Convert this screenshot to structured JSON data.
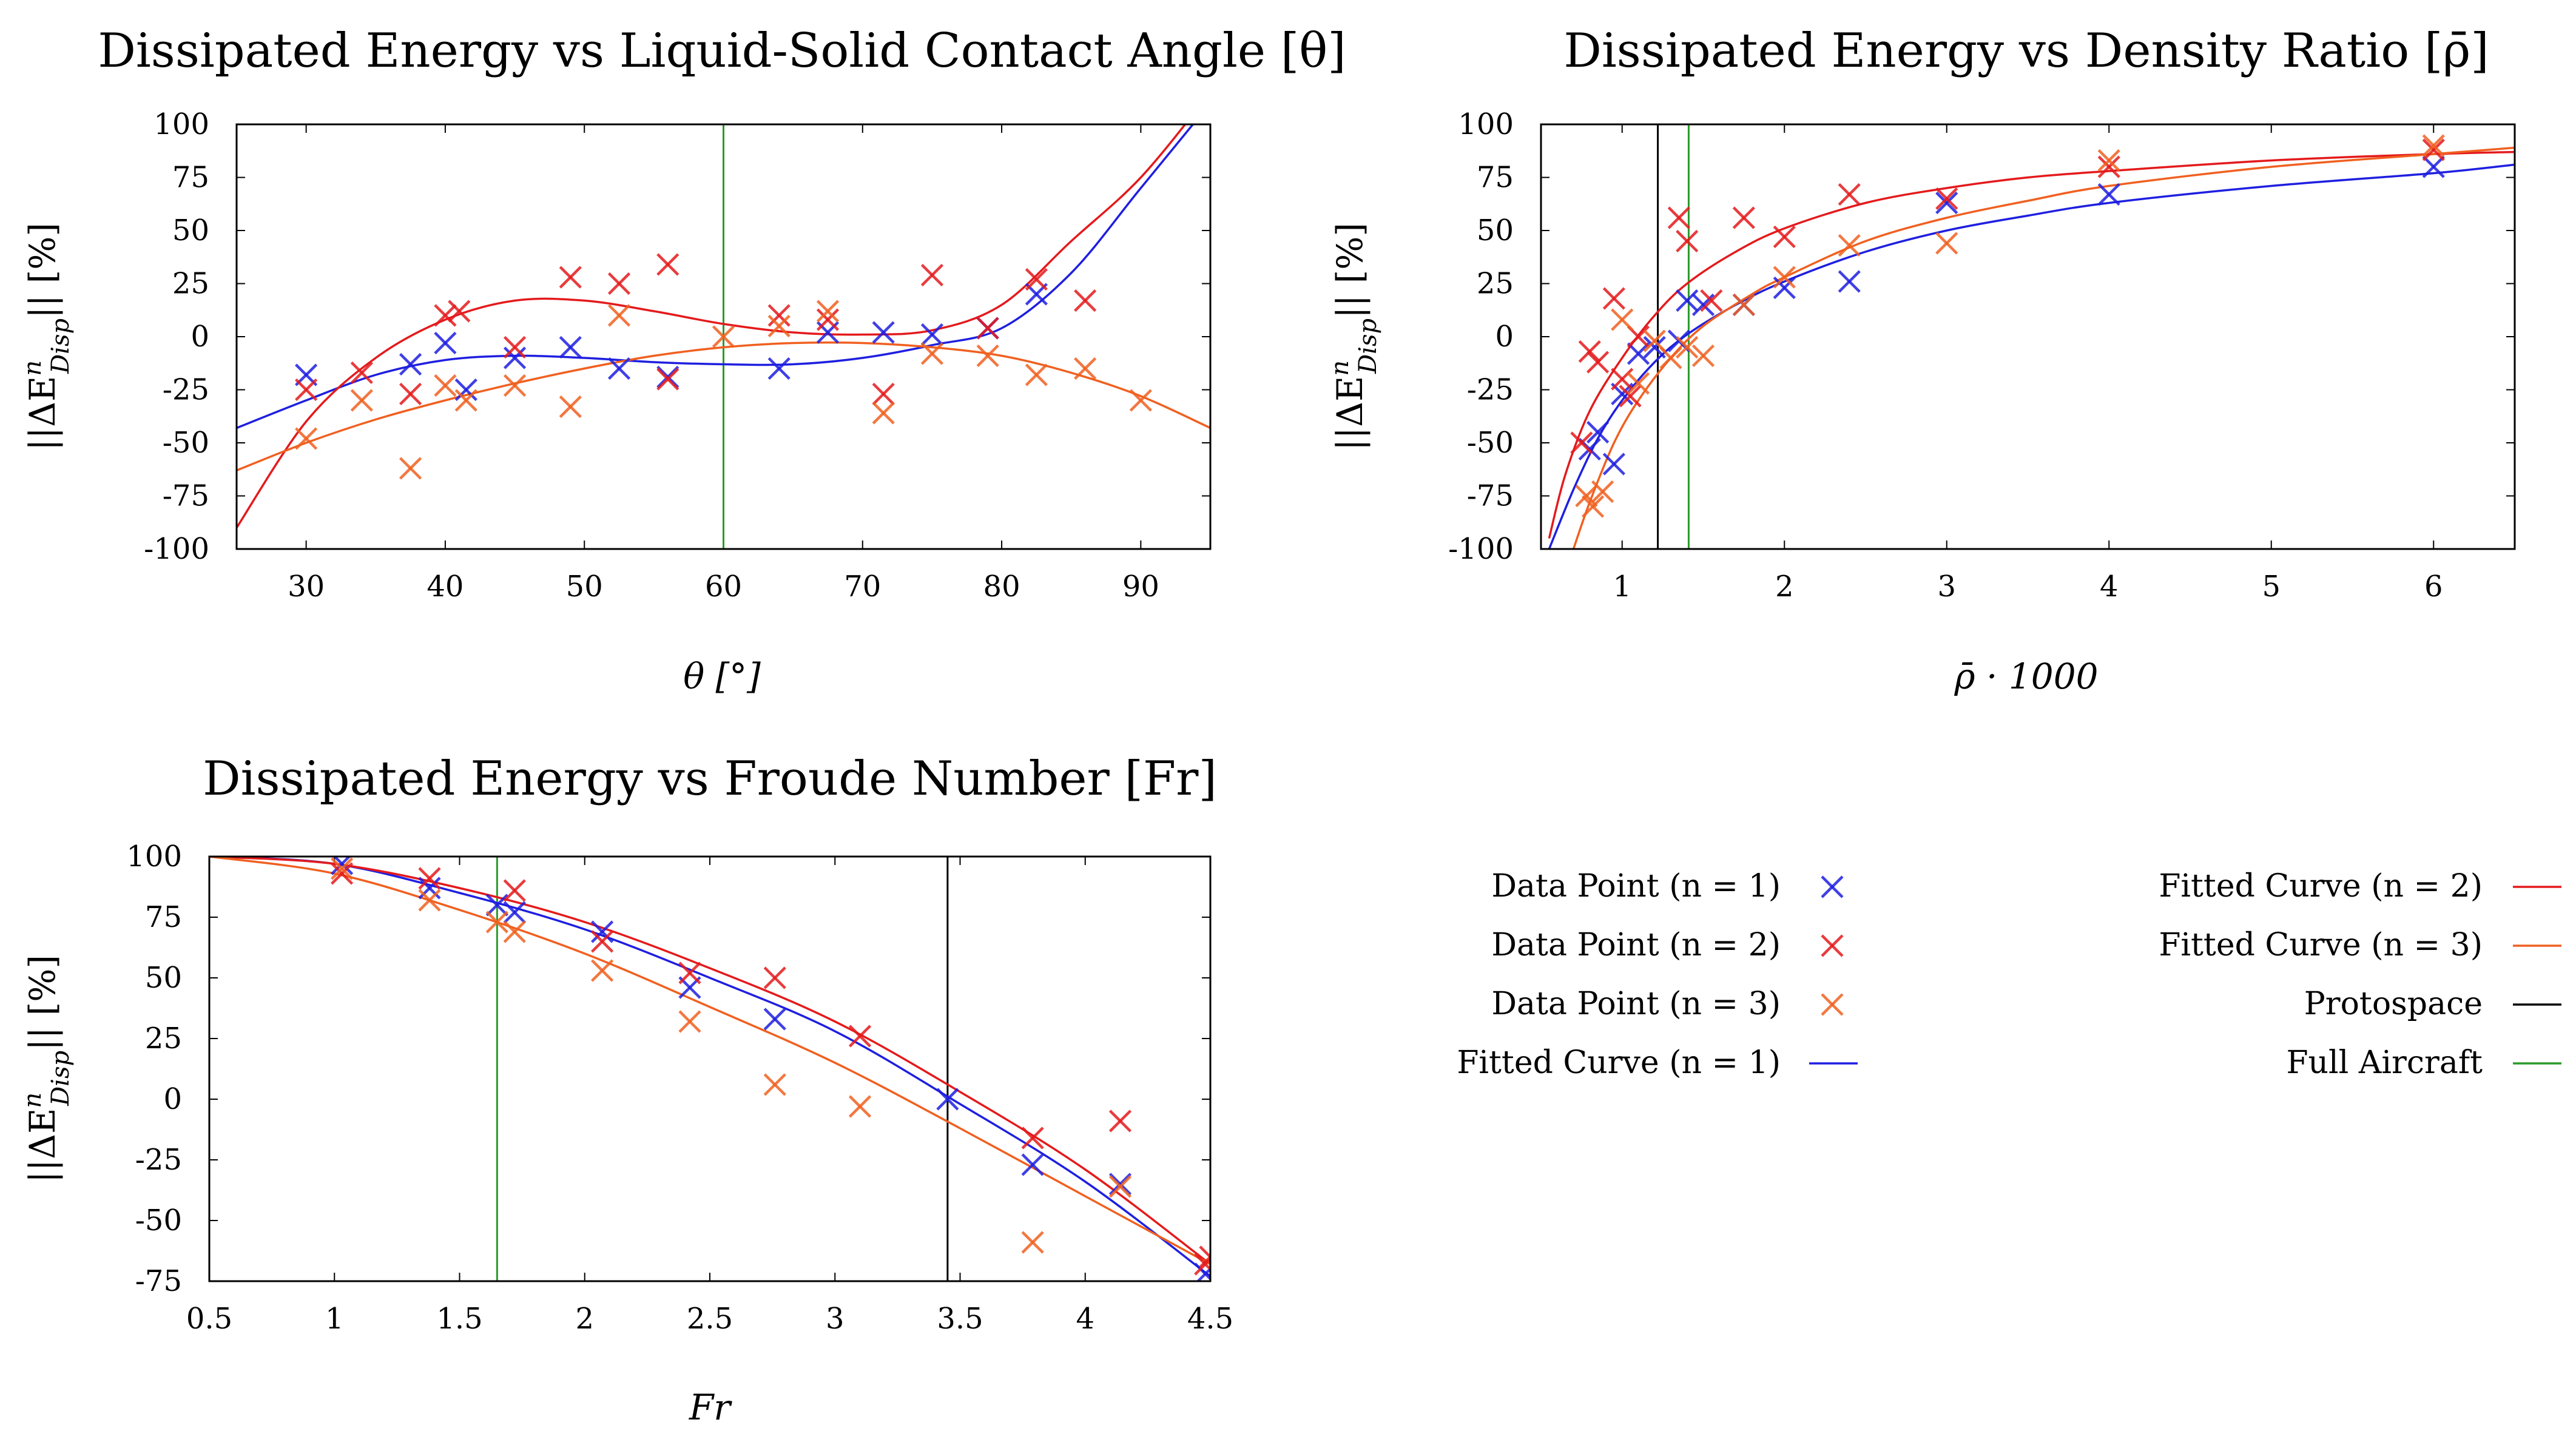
{
  "colors": {
    "n1": "#1f1fe0",
    "n2": "#e41a1c",
    "n3": "#f06020",
    "proto": "#000000",
    "full": "#2a9a2a"
  },
  "chart_data": [
    {
      "type": "scatter",
      "title": "Dissipated Energy vs Liquid-Solid Contact Angle [θ]",
      "xlabel": "θ [°]",
      "ylabel": "||ΔE^n_Disp|| [%]",
      "xlim": [
        25,
        95
      ],
      "ylim": [
        -100,
        100
      ],
      "xticks": [
        30,
        40,
        50,
        60,
        70,
        80,
        90
      ],
      "yticks": [
        -100,
        -75,
        -50,
        -25,
        0,
        25,
        50,
        75,
        100
      ],
      "vlines": [
        {
          "x": 60,
          "kind": "full"
        }
      ],
      "series": [
        {
          "name": "Data Point (n = 1)",
          "key": "n1",
          "points": [
            [
              30,
              -18
            ],
            [
              37.5,
              -13
            ],
            [
              40,
              -3
            ],
            [
              41.5,
              -25
            ],
            [
              45,
              -10
            ],
            [
              49,
              -5
            ],
            [
              52.5,
              -15
            ],
            [
              56,
              -19
            ],
            [
              64,
              -15
            ],
            [
              67.5,
              2
            ],
            [
              71.5,
              2
            ],
            [
              75,
              1
            ],
            [
              79,
              4
            ],
            [
              82.5,
              20
            ]
          ]
        },
        {
          "name": "Data Point (n = 2)",
          "key": "n2",
          "points": [
            [
              30,
              -25
            ],
            [
              34,
              -17
            ],
            [
              37.5,
              -27
            ],
            [
              40,
              10
            ],
            [
              41,
              12
            ],
            [
              45,
              -5
            ],
            [
              49,
              28
            ],
            [
              52.5,
              25
            ],
            [
              56,
              34
            ],
            [
              56,
              -20
            ],
            [
              64,
              10
            ],
            [
              67.5,
              8
            ],
            [
              71.5,
              -27
            ],
            [
              75,
              29
            ],
            [
              79,
              4
            ],
            [
              82.5,
              27
            ],
            [
              86,
              17
            ]
          ]
        },
        {
          "name": "Data Point (n = 3)",
          "key": "n3",
          "points": [
            [
              30,
              -48
            ],
            [
              34,
              -30
            ],
            [
              37.5,
              -62
            ],
            [
              40,
              -23
            ],
            [
              41.5,
              -30
            ],
            [
              45,
              -23
            ],
            [
              49,
              -33
            ],
            [
              52.5,
              10
            ],
            [
              60,
              0
            ],
            [
              64,
              5
            ],
            [
              67.5,
              12
            ],
            [
              71.5,
              -36
            ],
            [
              75,
              -8
            ],
            [
              79,
              -9
            ],
            [
              82.5,
              -18
            ],
            [
              86,
              -15
            ],
            [
              90,
              -30
            ]
          ]
        }
      ],
      "fits": [
        {
          "name": "Fitted Curve (n = 1)",
          "key": "n1",
          "x": [
            25,
            30,
            35,
            40,
            45,
            50,
            55,
            60,
            65,
            70,
            75,
            80,
            85,
            90,
            95
          ],
          "y": [
            -43,
            -30,
            -18,
            -11,
            -9,
            -10,
            -12,
            -13,
            -13,
            -10,
            -4,
            4,
            30,
            70,
            110
          ]
        },
        {
          "name": "Fitted Curve (n = 2)",
          "key": "n2",
          "x": [
            25,
            30,
            35,
            40,
            45,
            50,
            55,
            60,
            65,
            70,
            75,
            80,
            85,
            90,
            95
          ],
          "y": [
            -90,
            -40,
            -10,
            8,
            17,
            17,
            12,
            6,
            2,
            1,
            3,
            15,
            45,
            75,
            115
          ]
        },
        {
          "name": "Fitted Curve (n = 3)",
          "key": "n3",
          "x": [
            25,
            30,
            35,
            40,
            45,
            50,
            55,
            60,
            65,
            70,
            75,
            80,
            85,
            90,
            95
          ],
          "y": [
            -63,
            -50,
            -39,
            -30,
            -22,
            -15,
            -9,
            -5,
            -3,
            -3,
            -5,
            -9,
            -17,
            -28,
            -43
          ]
        }
      ]
    },
    {
      "type": "scatter",
      "title": "Dissipated Energy vs Density Ratio [ρ̄]",
      "xlabel": "ρ̄ · 1000",
      "ylabel": "||ΔE^n_Disp|| [%]",
      "xlim": [
        0.5,
        6.5
      ],
      "ylim": [
        -100,
        100
      ],
      "xticks": [
        1,
        2,
        3,
        4,
        5,
        6
      ],
      "yticks": [
        -100,
        -75,
        -50,
        -25,
        0,
        25,
        50,
        75,
        100
      ],
      "vlines": [
        {
          "x": 1.22,
          "kind": "proto"
        },
        {
          "x": 1.41,
          "kind": "full"
        }
      ],
      "series": [
        {
          "name": "Data Point (n = 1)",
          "key": "n1",
          "points": [
            [
              0.8,
              -53
            ],
            [
              0.85,
              -45
            ],
            [
              0.95,
              -60
            ],
            [
              1,
              -27
            ],
            [
              1.1,
              -8
            ],
            [
              1.2,
              -5
            ],
            [
              1.35,
              -2
            ],
            [
              1.4,
              17
            ],
            [
              1.5,
              15
            ],
            [
              1.75,
              15
            ],
            [
              2,
              23
            ],
            [
              2.4,
              26
            ],
            [
              3,
              63
            ],
            [
              4,
              67
            ],
            [
              6,
              80
            ]
          ]
        },
        {
          "name": "Data Point (n = 2)",
          "key": "n2",
          "points": [
            [
              0.75,
              -50
            ],
            [
              0.8,
              -7
            ],
            [
              0.85,
              -12
            ],
            [
              0.95,
              18
            ],
            [
              1,
              -20
            ],
            [
              1.05,
              -28
            ],
            [
              1.1,
              0
            ],
            [
              1.35,
              56
            ],
            [
              1.4,
              45
            ],
            [
              1.55,
              17
            ],
            [
              1.75,
              56
            ],
            [
              2,
              47
            ],
            [
              2.4,
              67
            ],
            [
              3,
              65
            ],
            [
              4,
              80
            ],
            [
              6,
              88
            ]
          ]
        },
        {
          "name": "Data Point (n = 3)",
          "key": "n3",
          "points": [
            [
              0.78,
              -75
            ],
            [
              0.82,
              -80
            ],
            [
              0.88,
              -73
            ],
            [
              1,
              8
            ],
            [
              1.1,
              -22
            ],
            [
              1.2,
              -2
            ],
            [
              1.3,
              -10
            ],
            [
              1.4,
              -5
            ],
            [
              1.5,
              -9
            ],
            [
              1.75,
              15
            ],
            [
              2,
              28
            ],
            [
              2.4,
              43
            ],
            [
              3,
              44
            ],
            [
              4,
              83
            ],
            [
              6,
              90
            ]
          ]
        }
      ],
      "fits": [
        {
          "name": "Fitted Curve (n = 1)",
          "key": "n1",
          "x": [
            0.55,
            0.7,
            0.85,
            1,
            1.2,
            1.4,
            1.7,
            2,
            2.5,
            3,
            3.5,
            4,
            5,
            6,
            6.5
          ],
          "y": [
            -100,
            -72,
            -48,
            -30,
            -12,
            1,
            15,
            26,
            40,
            50,
            57,
            63,
            71,
            77,
            81
          ]
        },
        {
          "name": "Fitted Curve (n = 2)",
          "key": "n2",
          "x": [
            0.55,
            0.65,
            0.8,
            1,
            1.2,
            1.4,
            1.7,
            2,
            2.5,
            3,
            3.5,
            4,
            5,
            6,
            6.5
          ],
          "y": [
            -95,
            -65,
            -35,
            -10,
            10,
            25,
            40,
            51,
            63,
            70,
            75,
            78,
            83,
            86,
            87
          ]
        },
        {
          "name": "Fitted Curve (n = 3)",
          "key": "n3",
          "x": [
            0.7,
            0.8,
            0.95,
            1.1,
            1.3,
            1.5,
            1.8,
            2,
            2.5,
            3,
            3.5,
            4,
            5,
            6,
            6.5
          ],
          "y": [
            -100,
            -78,
            -50,
            -30,
            -10,
            5,
            20,
            28,
            45,
            56,
            64,
            71,
            80,
            86,
            89
          ]
        }
      ]
    },
    {
      "type": "scatter",
      "title": "Dissipated Energy vs Froude Number [Fr]",
      "xlabel": "Fr",
      "ylabel": "||ΔE^n_Disp|| [%]",
      "xlim": [
        0.5,
        4.5
      ],
      "ylim": [
        -75,
        100
      ],
      "xticks": [
        0.5,
        1,
        1.5,
        2,
        2.5,
        3,
        3.5,
        4,
        4.5
      ],
      "yticks": [
        -75,
        -50,
        -25,
        0,
        25,
        50,
        75,
        100
      ],
      "vlines": [
        {
          "x": 3.45,
          "kind": "proto"
        },
        {
          "x": 1.65,
          "kind": "full"
        }
      ],
      "series": [
        {
          "name": "Data Point (n = 1)",
          "key": "n1",
          "points": [
            [
              1.03,
              97
            ],
            [
              1.38,
              87
            ],
            [
              1.65,
              80
            ],
            [
              1.72,
              77
            ],
            [
              2.07,
              69
            ],
            [
              2.42,
              46
            ],
            [
              2.76,
              33
            ],
            [
              3.45,
              0
            ],
            [
              3.79,
              -27
            ],
            [
              4.14,
              -35
            ],
            [
              4.48,
              -72
            ]
          ]
        },
        {
          "name": "Data Point (n = 2)",
          "key": "n2",
          "points": [
            [
              1.03,
              93
            ],
            [
              1.38,
              91
            ],
            [
              1.72,
              86
            ],
            [
              2.07,
              65
            ],
            [
              2.42,
              52
            ],
            [
              2.76,
              50
            ],
            [
              3.1,
              26
            ],
            [
              3.79,
              -16
            ],
            [
              4.14,
              -9
            ],
            [
              4.48,
              -68
            ],
            [
              4.5,
              -65
            ]
          ]
        },
        {
          "name": "Data Point (n = 3)",
          "key": "n3",
          "points": [
            [
              1.03,
              95
            ],
            [
              1.38,
              82
            ],
            [
              1.65,
              73
            ],
            [
              1.72,
              69
            ],
            [
              2.07,
              53
            ],
            [
              2.42,
              32
            ],
            [
              2.76,
              6
            ],
            [
              3.1,
              -3
            ],
            [
              3.79,
              -59
            ],
            [
              4.14,
              -36
            ]
          ]
        }
      ],
      "fits": [
        {
          "name": "Fitted Curve (n = 1)",
          "key": "n1",
          "x": [
            0.5,
            1,
            1.5,
            2,
            2.5,
            3,
            3.5,
            4,
            4.5
          ],
          "y": [
            100,
            97,
            85,
            70,
            50,
            28,
            -2,
            -34,
            -73
          ]
        },
        {
          "name": "Fitted Curve (n = 2)",
          "key": "n2",
          "x": [
            0.5,
            1,
            1.5,
            2,
            2.5,
            3,
            3.5,
            4,
            4.5
          ],
          "y": [
            100,
            97,
            87,
            73,
            54,
            32,
            3,
            -29,
            -68
          ]
        },
        {
          "name": "Fitted Curve (n = 3)",
          "key": "n3",
          "x": [
            0.5,
            1,
            1.5,
            2,
            2.5,
            3,
            3.5,
            4,
            4.5
          ],
          "y": [
            100,
            93,
            78,
            60,
            38,
            15,
            -12,
            -40,
            -68
          ]
        }
      ]
    }
  ],
  "legend": {
    "left": [
      {
        "label": "Data Point (n = 1)",
        "key": "n1",
        "kind": "point"
      },
      {
        "label": "Data Point (n = 2)",
        "key": "n2",
        "kind": "point"
      },
      {
        "label": "Data Point (n = 3)",
        "key": "n3",
        "kind": "point"
      },
      {
        "label": "Fitted Curve (n = 1)",
        "key": "n1",
        "kind": "line"
      }
    ],
    "right": [
      {
        "label": "Fitted Curve (n = 2)",
        "key": "n2",
        "kind": "line"
      },
      {
        "label": "Fitted Curve (n = 3)",
        "key": "n3",
        "kind": "line"
      },
      {
        "label": "Protospace",
        "key": "proto",
        "kind": "line"
      },
      {
        "label": "Full Aircraft",
        "key": "full",
        "kind": "line"
      }
    ]
  }
}
